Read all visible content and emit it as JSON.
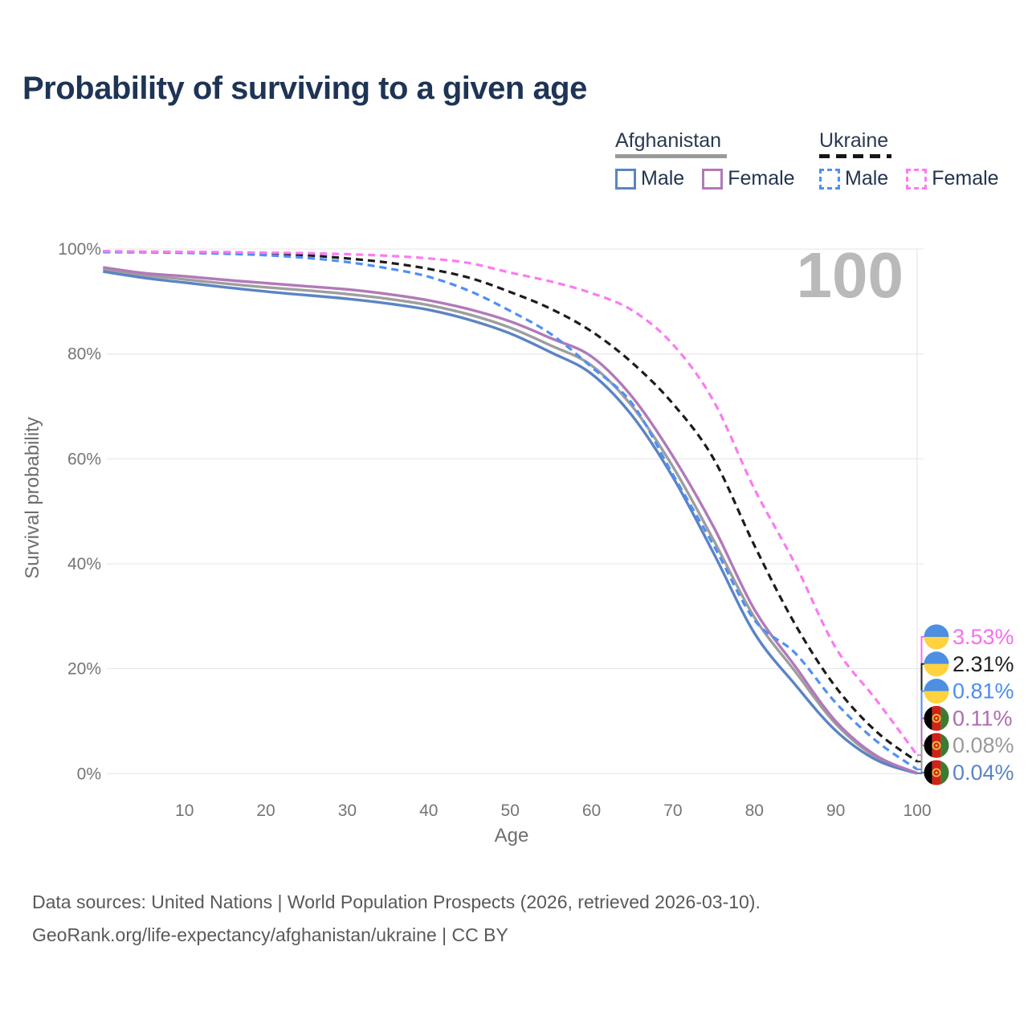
{
  "title": "Probability of surviving to a given age",
  "age_indicator": "100",
  "legend": {
    "groups": [
      {
        "country": "Afghanistan",
        "line_style": "solid",
        "underline_color": "#9a9a9a",
        "items": [
          {
            "label": "Male",
            "color": "#5b84c4",
            "dashed": false
          },
          {
            "label": "Female",
            "color": "#b279b8",
            "dashed": false
          }
        ]
      },
      {
        "country": "Ukraine",
        "line_style": "dashed",
        "underline_color": "#161616",
        "items": [
          {
            "label": "Male",
            "color": "#4f8ff7",
            "dashed": true
          },
          {
            "label": "Female",
            "color": "#fb7bf0",
            "dashed": true
          }
        ]
      }
    ]
  },
  "chart_data": {
    "type": "line",
    "title": "Probability of surviving to a given age",
    "xlabel": "Age",
    "ylabel": "Survival probability",
    "xlim": [
      0,
      100
    ],
    "ylim": [
      0,
      100
    ],
    "grid": "horizontal",
    "x_ticks": [
      10,
      20,
      30,
      40,
      50,
      60,
      70,
      80,
      90,
      100
    ],
    "y_ticks": [
      {
        "value": 0,
        "label": "0%"
      },
      {
        "value": 20,
        "label": "20%"
      },
      {
        "value": 40,
        "label": "40%"
      },
      {
        "value": 60,
        "label": "60%"
      },
      {
        "value": 80,
        "label": "80%"
      },
      {
        "value": 100,
        "label": "100%"
      }
    ],
    "current_age_line": 100,
    "x": [
      0,
      5,
      10,
      15,
      20,
      25,
      30,
      35,
      40,
      45,
      50,
      55,
      60,
      65,
      70,
      75,
      80,
      85,
      90,
      95,
      100
    ],
    "series": [
      {
        "name": "Afghanistan — Both sexes",
        "country": "Afghanistan",
        "sex": "both",
        "color": "#9e9e9e",
        "label_color": "#9a9a9a",
        "dashed": false,
        "flag": "afghanistan",
        "end_label": "0.08%",
        "end_value": 0.08,
        "values": [
          96.1,
          95.0,
          94.2,
          93.4,
          92.7,
          92.1,
          91.4,
          90.5,
          89.3,
          87.5,
          85.0,
          81.6,
          77.8,
          70.0,
          58.5,
          44.5,
          29.8,
          19.5,
          9.5,
          3.1,
          0.08
        ]
      },
      {
        "name": "Afghanistan — Male",
        "country": "Afghanistan",
        "sex": "male",
        "color": "#5b84c4",
        "label_color": "#5b84c4",
        "dashed": false,
        "flag": "afghanistan",
        "end_label": "0.04%",
        "end_value": 0.04,
        "values": [
          95.7,
          94.5,
          93.6,
          92.7,
          91.9,
          91.2,
          90.5,
          89.6,
          88.4,
          86.5,
          83.9,
          80.3,
          76.2,
          68.2,
          56.5,
          42.0,
          26.8,
          17.0,
          8.2,
          2.6,
          0.04
        ]
      },
      {
        "name": "Afghanistan — Female",
        "country": "Afghanistan",
        "sex": "female",
        "color": "#b279b8",
        "label_color": "#ae6cb0",
        "dashed": false,
        "flag": "afghanistan",
        "end_label": "0.11%",
        "end_value": 0.11,
        "values": [
          96.5,
          95.4,
          94.8,
          94.1,
          93.5,
          92.9,
          92.3,
          91.4,
          90.2,
          88.5,
          86.2,
          83.0,
          79.5,
          71.8,
          60.5,
          47.0,
          31.3,
          20.5,
          10.0,
          3.4,
          0.11
        ]
      },
      {
        "name": "Ukraine — Both sexes",
        "country": "Ukraine",
        "sex": "both",
        "color": "#1c1c1c",
        "label_color": "#1f1f1f",
        "dashed": true,
        "flag": "ukraine",
        "end_label": "2.31%",
        "end_value": 2.31,
        "values": [
          99.5,
          99.45,
          99.4,
          99.3,
          99.15,
          98.8,
          98.2,
          97.4,
          96.2,
          94.5,
          91.8,
          88.6,
          84.3,
          78.3,
          70.5,
          60.0,
          43.5,
          28.5,
          16.5,
          8.0,
          2.31
        ]
      },
      {
        "name": "Ukraine — Male",
        "country": "Ukraine",
        "sex": "male",
        "color": "#4f8ff7",
        "label_color": "#4b8ef2",
        "dashed": true,
        "flag": "ukraine",
        "end_label": "0.81%",
        "end_value": 0.81,
        "values": [
          99.4,
          99.35,
          99.25,
          99.1,
          98.8,
          98.3,
          97.5,
          96.3,
          94.7,
          92.0,
          88.2,
          83.8,
          77.5,
          70.5,
          57.0,
          43.5,
          29.3,
          23.0,
          13.5,
          6.2,
          0.81
        ]
      },
      {
        "name": "Ukraine — Female",
        "country": "Ukraine",
        "sex": "female",
        "color": "#fb7bf0",
        "label_color": "#f66ef0",
        "dashed": true,
        "flag": "ukraine",
        "end_label": "3.53%",
        "end_value": 3.53,
        "values": [
          99.6,
          99.5,
          99.45,
          99.4,
          99.3,
          99.2,
          99.0,
          98.7,
          98.2,
          97.3,
          95.5,
          93.8,
          91.6,
          88.3,
          81.8,
          71.0,
          54.3,
          40.0,
          24.0,
          14.0,
          3.53
        ]
      }
    ],
    "flag_colors": {
      "ukraine": {
        "top": "#4d8fe0",
        "bottom": "#ffd23e"
      },
      "afghanistan": {
        "stripes": [
          "#000000",
          "#d32117",
          "#3d7a33"
        ],
        "emblem": "#f2c43f"
      }
    }
  },
  "footer": {
    "line1": "Data sources: United Nations | World Population Prospects (2026, retrieved 2026-03-10).",
    "line2": "GeoRank.org/life-expectancy/afghanistan/ukraine | CC BY"
  }
}
